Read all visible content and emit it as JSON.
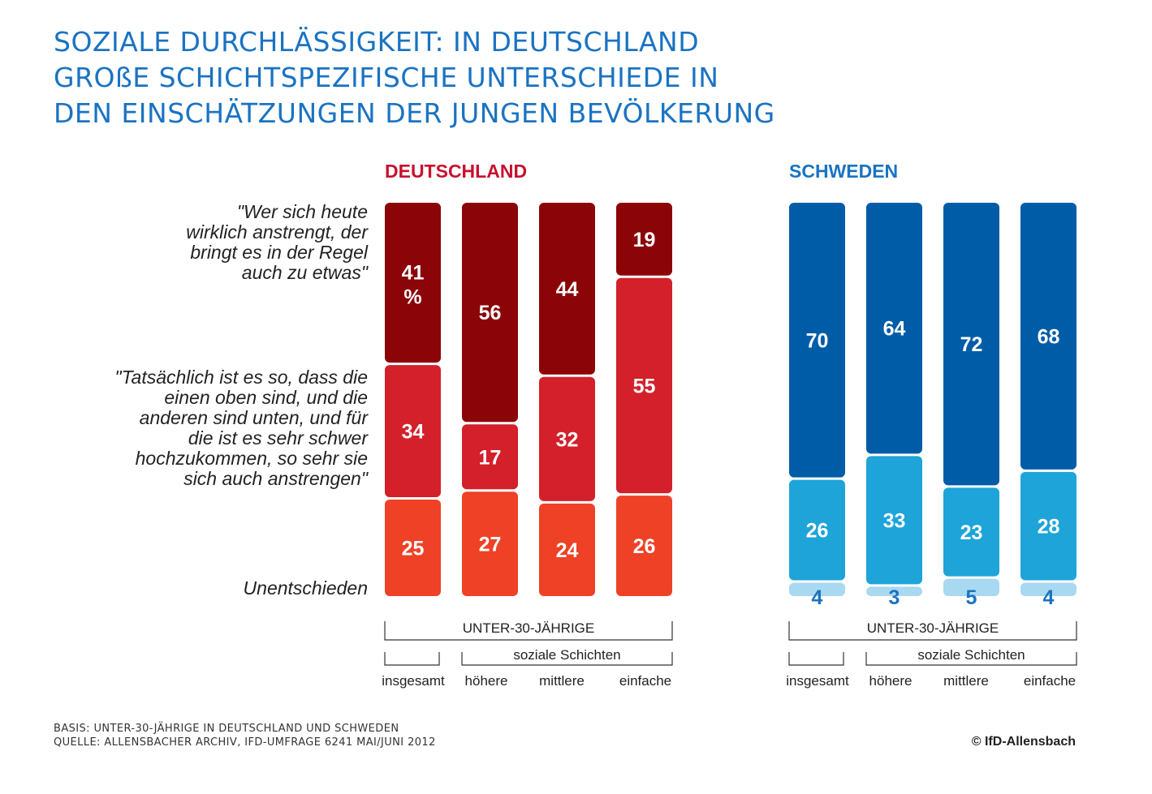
{
  "title_lines": [
    "SOZIALE DURCHLÄSSIGKEIT: IN DEUTSCHLAND",
    "GROßE SCHICHTSPEZIFISCHE UNTERSCHIEDE IN",
    "DEN EINSCHÄTZUNGEN DER JUNGEN BEVÖLKERUNG"
  ],
  "statements": [
    "\"Wer sich heute\nwirklich anstrengt, der\nbringt es in der Regel\nauch zu etwas\"",
    "\"Tatsächlich ist es so, dass die\neinen oben sind, und die\nanderen sind unten, und für\ndie ist es sehr schwer\nhochzukommen, so sehr sie\nsich auch anstrengen\"",
    "Unentschieden"
  ],
  "footer": {
    "basis": "BASIS: UNTER-30-JÄHRIGE IN DEUTSCHLAND UND SCHWEDEN",
    "quelle": "QUELLE: ALLENSBACHER ARCHIV, IFD-UMFRAGE 6241 MAI/JUNI 2012"
  },
  "credit": "© IfD-Allensbach",
  "chart_data": [
    {
      "type": "bar",
      "stacked": true,
      "title": "DEUTSCHLAND",
      "title_color": "#c8102e",
      "categories": [
        "insgesamt",
        "höhere",
        "mittlere",
        "einfache"
      ],
      "group_label": "UNTER-30-JÄHRIGE",
      "subgroup_label": "soziale Schichten",
      "unit_label": "%",
      "series": [
        {
          "values": [
            41,
            56,
            44,
            19
          ],
          "color": "#8b0508"
        },
        {
          "values": [
            34,
            17,
            32,
            55
          ],
          "color": "#d3202a"
        },
        {
          "values": [
            25,
            27,
            24,
            26
          ],
          "color": "#ee4126"
        }
      ],
      "label_color": "#ffffff"
    },
    {
      "type": "bar",
      "stacked": true,
      "title": "SCHWEDEN",
      "title_color": "#1a73c2",
      "categories": [
        "insgesamt",
        "höhere",
        "mittlere",
        "einfache"
      ],
      "group_label": "UNTER-30-JÄHRIGE",
      "subgroup_label": "soziale Schichten",
      "series": [
        {
          "values": [
            70,
            64,
            72,
            68
          ],
          "color": "#005ca7"
        },
        {
          "values": [
            26,
            33,
            23,
            28
          ],
          "color": "#1ea4d8"
        },
        {
          "values": [
            4,
            3,
            5,
            4
          ],
          "color": "#a9d8f1"
        }
      ],
      "label_color": "#ffffff",
      "small_label_color": "#1a73c2"
    }
  ]
}
